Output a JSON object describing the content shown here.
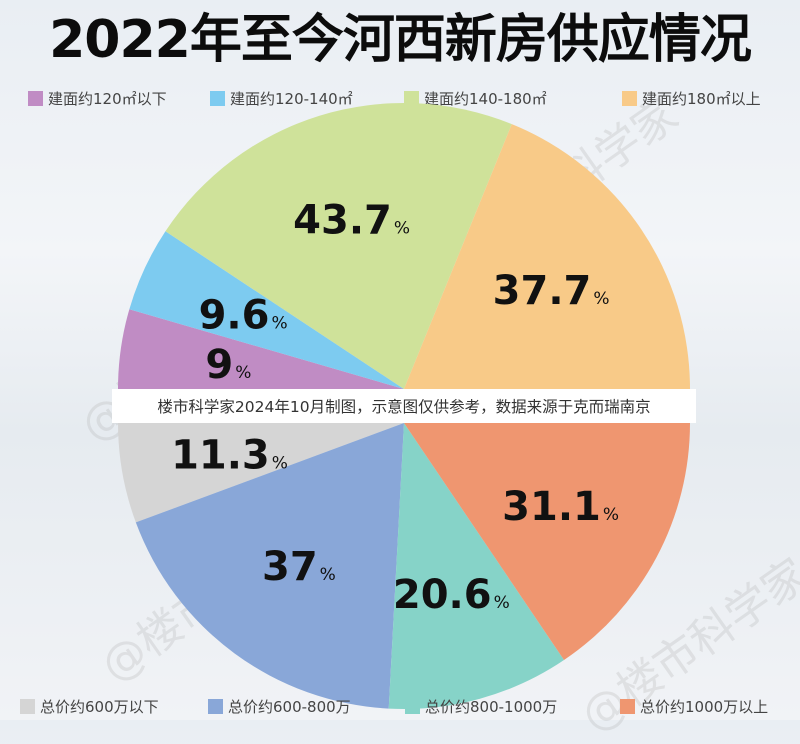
{
  "title": "2022年至今河西新房供应情况",
  "note": "楼市科学家2024年10月制图，示意图仅供参考，数据来源于克而瑞南京",
  "watermark": "@楼市科学家",
  "watermark_bottom_left": "大楼科学家",
  "colors": {
    "purple": "#c08cc4",
    "blue": "#7dcbf0",
    "green": "#cfe29a",
    "yellow": "#f8ca88",
    "gray": "#d5d5d5",
    "periwinkle": "#89a7d8",
    "teal": "#86d3c8",
    "salmon": "#ef9670"
  },
  "chart_data": [
    {
      "type": "pie",
      "half": "top",
      "series": [
        {
          "label": "建面约120㎡以下",
          "value": 9,
          "color": "#c08cc4"
        },
        {
          "label": "建面约120-140㎡",
          "value": 9.6,
          "color": "#7dcbf0"
        },
        {
          "label": "建面约140-180㎡",
          "value": 43.7,
          "color": "#cfe29a"
        },
        {
          "label": "建面约180㎡以上",
          "value": 37.7,
          "color": "#f8ca88"
        }
      ]
    },
    {
      "type": "pie",
      "half": "bottom",
      "series": [
        {
          "label": "总价约600万以下",
          "value": 11.3,
          "color": "#d5d5d5"
        },
        {
          "label": "总价约600-800万",
          "value": 37,
          "color": "#89a7d8"
        },
        {
          "label": "总价约800-1000万",
          "value": 20.6,
          "color": "#86d3c8"
        },
        {
          "label": "总价约1000万以上",
          "value": 31.1,
          "color": "#ef9670"
        }
      ]
    }
  ]
}
